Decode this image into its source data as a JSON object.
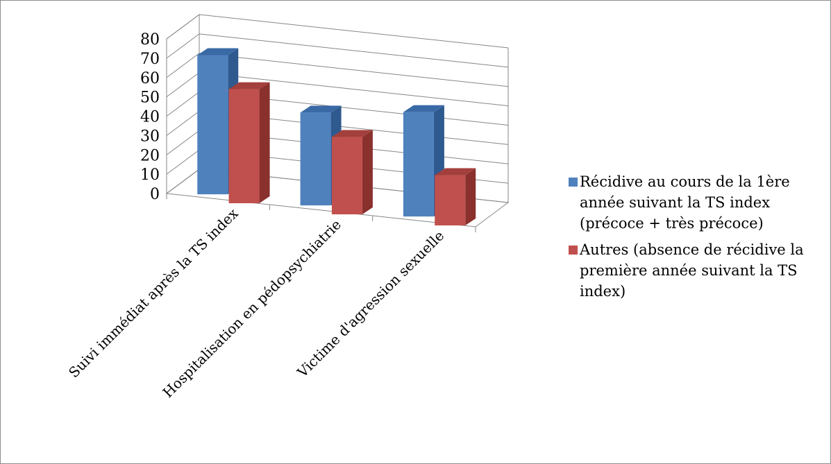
{
  "chart_data": {
    "type": "bar",
    "categories": [
      "Suivi immédiat après la TS index",
      "Hospitalisation en pédopsychiatrie",
      "Victime d'agression sexuelle"
    ],
    "series": [
      {
        "name": "Récidive au cours de la 1ère année suivant la TS index (précoce + très précoce)",
        "values": [
          72,
          48,
          54
        ],
        "color": "#4f81bd"
      },
      {
        "name": "Autres (absence de récidive la première année suivant la TS index)",
        "values": [
          59,
          40,
          26
        ],
        "color": "#c0504d"
      }
    ],
    "yticks": [
      "0",
      "10",
      "20",
      "30",
      "40",
      "50",
      "60",
      "70",
      "80"
    ],
    "ylim": [
      0,
      80
    ],
    "three_d": true,
    "grid": true,
    "legend_position": "right"
  }
}
